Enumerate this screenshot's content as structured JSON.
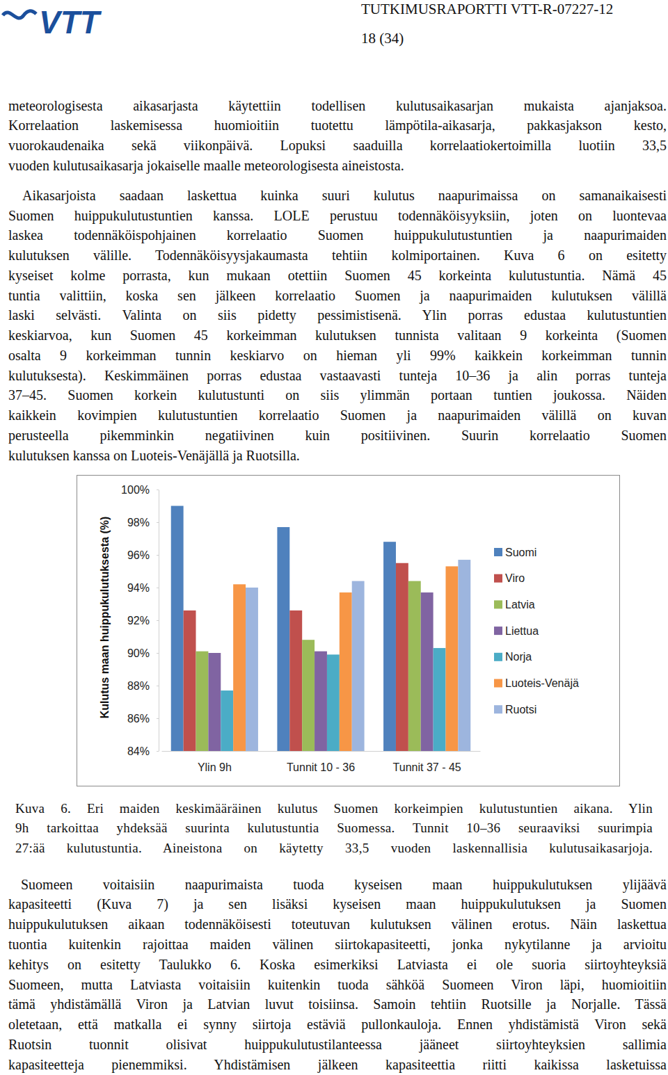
{
  "header": {
    "logo": "VTT",
    "report_id": "TUTKIMUSRAPORTTI VTT-R-07227-12",
    "page": "18 (34)"
  },
  "text_before": [
    [
      "meteorologisesta aikasarjasta käytettiin todellisen kulutusaikasarjan mukaista ajanjaksoa.",
      "Korrelaation laskemisessa huomioitiin tuotettu lämpötila-aikasarja, pakkasjakson kesto,",
      "vuorokaudenaika sekä viikonpäivä. Lopuksi saaduilla korrelaatiokertoimilla luotiin 33,5",
      "vuoden kulutusaikasarja jokaiselle maalle meteorologisesta aineistosta."
    ],
    [
      "Aikasarjoista saadaan laskettua kuinka suuri kulutus naapurimaissa on samanaikaisesti",
      "Suomen huippukulutustuntien kanssa. LOLE perustuu todennäköisyyksiin, joten on luontevaa",
      "laskea todennäköispohjainen korrelaatio Suomen huippukulutustuntien ja naapurimaiden",
      "kulutuksen välille. Todennäköisyysjakaumasta tehtiin kolmiportainen. Kuva 6 on esitetty",
      "kyseiset kolme porrasta, kun mukaan otettiin Suomen 45 korkeinta kulutustuntia. Nämä 45",
      "tuntia valittiin, koska sen jälkeen korrelaatio Suomen ja naapurimaiden kulutuksen välillä",
      "laski selvästi. Valinta on siis pidetty pessimistisenä. Ylin porras edustaa kulutustuntien",
      "keskiarvoa, kun Suomen 45 korkeimman kulutuksen tunnista valitaan 9 korkeinta (Suomen",
      "osalta 9 korkeimman tunnin keskiarvo on hieman yli 99% kaikkein korkeimman tunnin",
      "kulutuksesta). Keskimmäinen porras edustaa vastaavasti tunteja 10–36 ja alin porras tunteja",
      "37–45. Suomen korkein kulutustunti on siis ylimmän portaan tuntien joukossa. Näiden",
      "kaikkein kovimpien kulutustuntien korrelaatio Suomen ja naapurimaiden välillä on kuvan",
      "perusteella pikemminkin negatiivinen kuin positiivinen. Suurin korrelaatio Suomen",
      "kulutuksen kanssa on Luoteis-Venäjällä ja Ruotsilla."
    ]
  ],
  "chart_data": {
    "type": "bar",
    "ylabel": "Kulutus maan huippukulutuksesta (%)",
    "categories": [
      "Ylin 9h",
      "Tunnit 10 - 36",
      "Tunnit 37 - 45"
    ],
    "series": [
      {
        "name": "Suomi",
        "color": "#4f81bd",
        "values": [
          99.0,
          97.7,
          96.8
        ]
      },
      {
        "name": "Viro",
        "color": "#c0504d",
        "values": [
          92.6,
          92.6,
          95.5
        ]
      },
      {
        "name": "Latvia",
        "color": "#9bbb59",
        "values": [
          90.1,
          90.8,
          94.4
        ]
      },
      {
        "name": "Liettua",
        "color": "#8064a2",
        "values": [
          90.0,
          90.1,
          93.7
        ]
      },
      {
        "name": "Norja",
        "color": "#4bacc6",
        "values": [
          87.7,
          89.9,
          90.3
        ]
      },
      {
        "name": "Luoteis-Venäjä",
        "color": "#f79646",
        "values": [
          94.2,
          93.7,
          95.3
        ]
      },
      {
        "name": "Ruotsi",
        "color": "#9db5de",
        "values": [
          94.0,
          94.4,
          95.7
        ]
      }
    ],
    "ylim": [
      84,
      100
    ],
    "yticks": [
      {
        "value": 84,
        "label": "84%"
      },
      {
        "value": 86,
        "label": "86%"
      },
      {
        "value": 88,
        "label": "88%"
      },
      {
        "value": 90,
        "label": "90%"
      },
      {
        "value": 92,
        "label": "92%"
      },
      {
        "value": 94,
        "label": "94%"
      },
      {
        "value": 96,
        "label": "96%"
      },
      {
        "value": 98,
        "label": "98%"
      },
      {
        "value": 100,
        "label": "100%"
      }
    ],
    "grid": false,
    "legend": "right",
    "data_labels": false
  },
  "caption": [
    "Kuva 6. Eri maiden keskimääräinen kulutus Suomen korkeimpien kulutustuntien aikana. Ylin",
    "9h tarkoittaa yhdeksää suurinta kulutustuntia Suomessa. Tunnit 10–36 seuraaviksi suurimpia",
    "27:ää kulutustuntia. Aineistona on käytetty 33,5 vuoden laskennallisia kulutusaikasarjoja."
  ],
  "text_after": [
    [
      "Suomeen voitaisiin naapurimaista tuoda kyseisen maan huippukulutuksen ylijäävä",
      "kapasiteetti (Kuva 7) ja sen lisäksi kyseisen maan huippukulutuksen ja Suomen",
      "huippukulutuksen aikaan todennäköisesti toteutuvan kulutuksen välinen erotus. Näin laskettua",
      "tuontia kuitenkin rajoittaa maiden välinen siirtokapasiteetti, jonka nykytilanne ja arvioitu",
      "kehitys on esitetty Taulukko 6. Koska esimerkiksi Latviasta ei ole suoria siirtoyhteyksiä",
      "Suomeen, mutta Latviasta voitaisiin kuitenkin tuoda sähköä Suomeen Viron läpi, huomioitiin",
      "tämä yhdistämällä Viron ja Latvian luvut toisiinsa. Samoin tehtiin Ruotsille ja Norjalle. Tässä",
      "oletetaan, että matkalla ei synny siirtoja estäviä pullonkauloja. Ennen yhdistämistä Viron sekä",
      "Ruotsin tuonnit olisivat huippukulutustilanteessa jääneet siirtoyhteyksien sallimia",
      "kapasiteetteja pienemmiksi. Yhdistämisen jälkeen kapasiteettia riitti kaikissa lasketuissa"
    ]
  ]
}
